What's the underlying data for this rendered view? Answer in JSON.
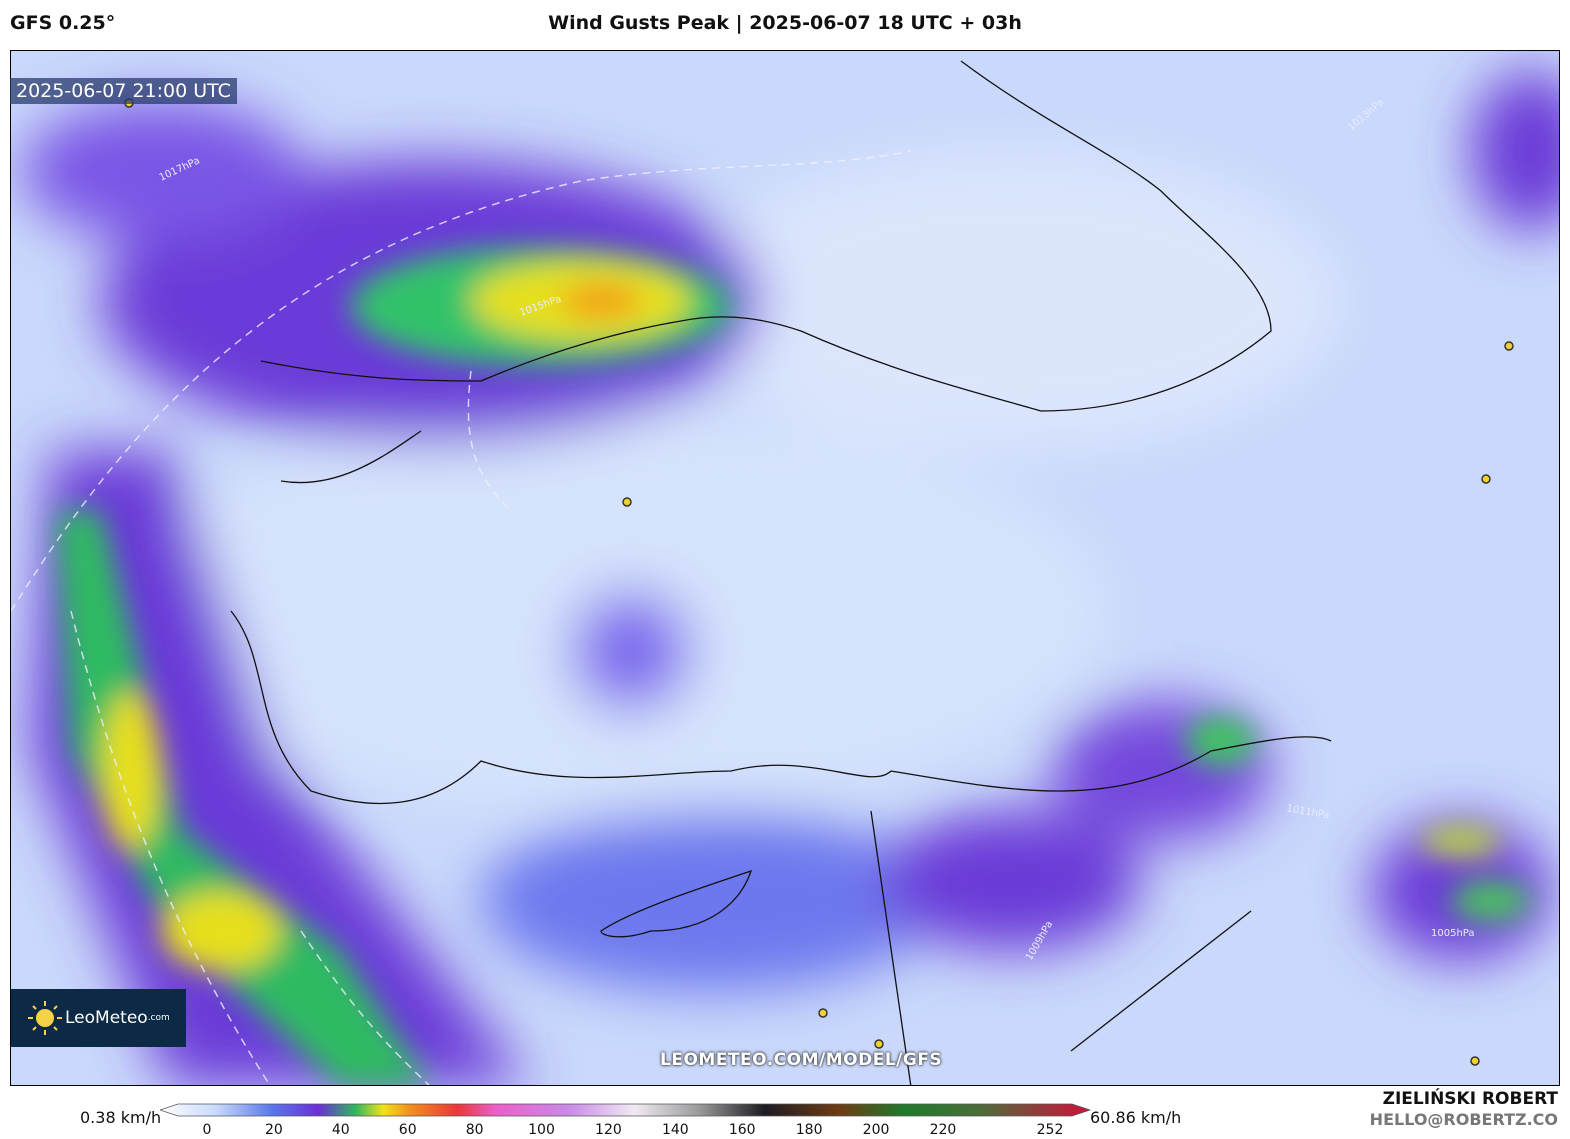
{
  "header": {
    "left": "GFS 0.25°",
    "title": "Wind Gusts Peak | 2025-06-07 18 UTC + 03h"
  },
  "map": {
    "timestamp": "2025-06-07 21:00 UTC",
    "logo": "LeoMeteo",
    "logo_suffix": ".com",
    "watermark": "LEOMETEO.COM/MODEL/GFS",
    "isobars": [
      "1017hPa",
      "1015hPa",
      "1013hPa",
      "1011hPa",
      "1009hPa",
      "1005hPa"
    ]
  },
  "legend": {
    "min_label": "0.38 km/h",
    "max_label": "60.86 km/h",
    "ticks": [
      0,
      20,
      40,
      60,
      80,
      100,
      120,
      140,
      160,
      180,
      200,
      220,
      252
    ]
  },
  "footer": {
    "author": "ZIELIŃSKI ROBERT",
    "email": "HELLO@ROBERTZ.CO"
  }
}
